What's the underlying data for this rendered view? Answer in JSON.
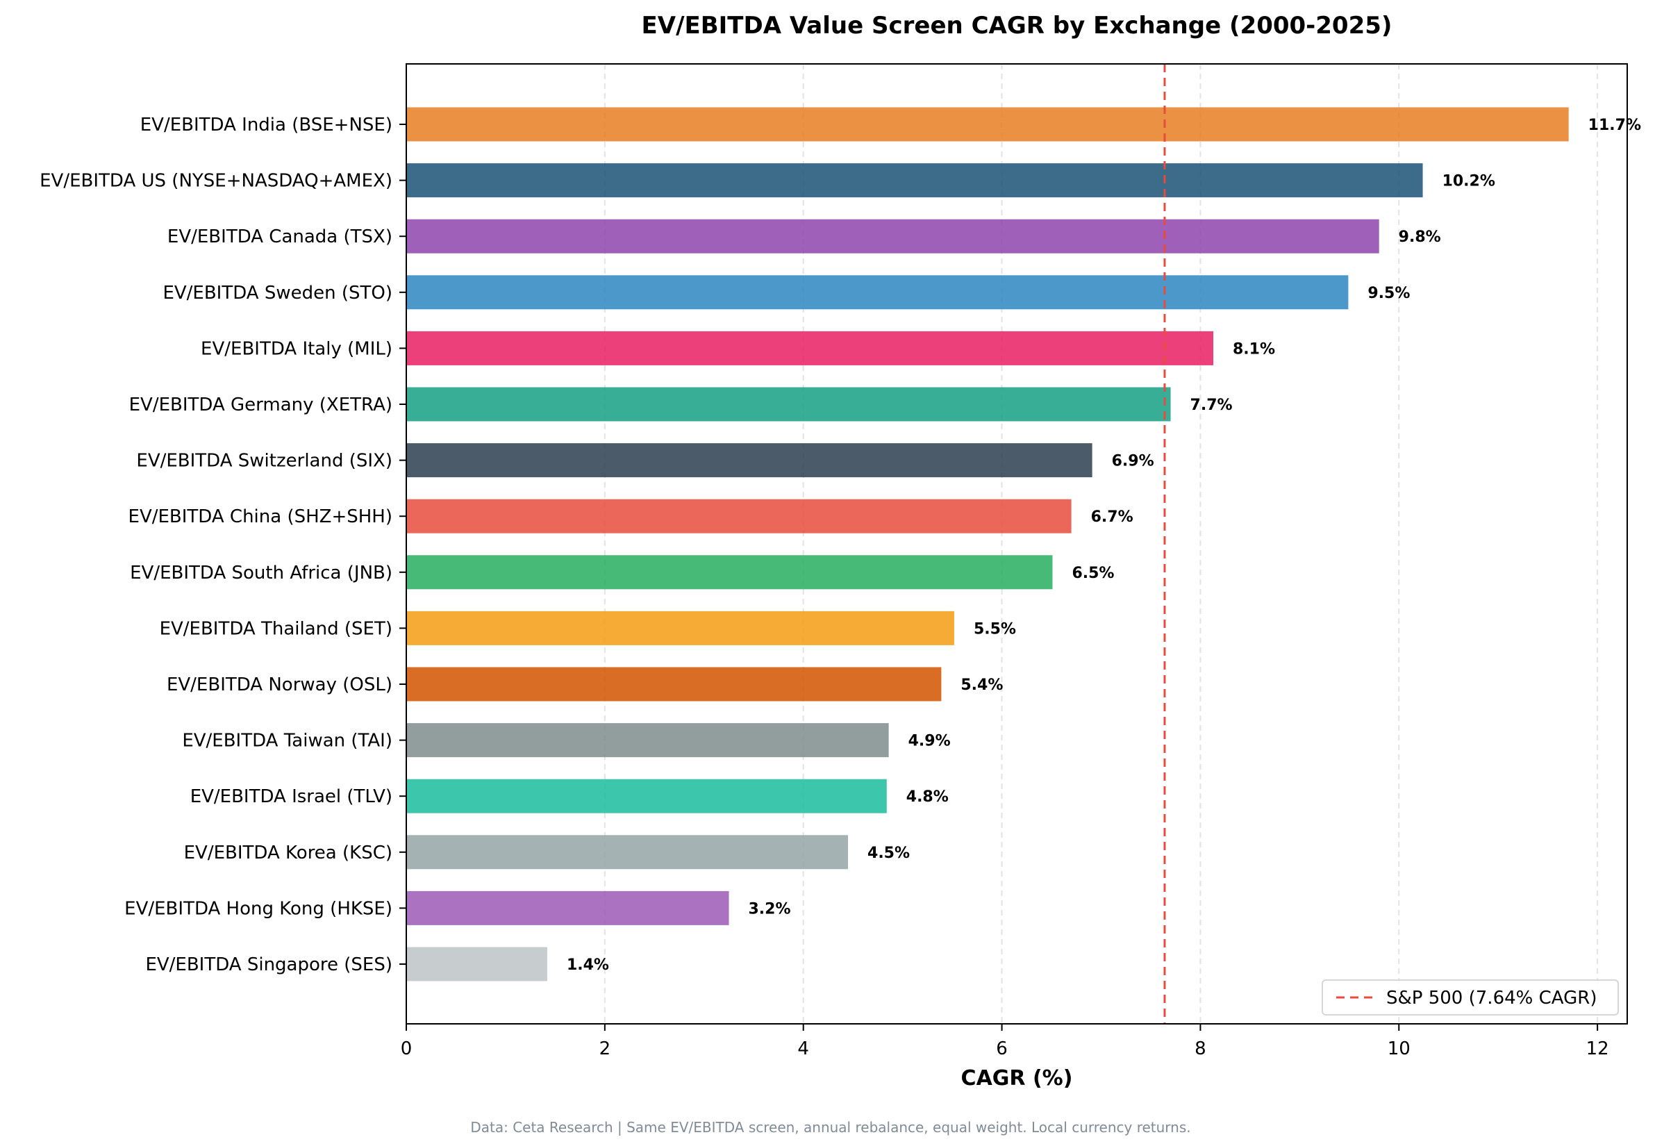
{
  "chart_data": {
    "type": "bar",
    "orientation": "horizontal",
    "title": "EV/EBITDA Value Screen CAGR by Exchange (2000-2025)",
    "xlabel": "CAGR (%)",
    "ylabel": "",
    "xlim": [
      0,
      12.3
    ],
    "xticks": [
      0,
      2,
      4,
      6,
      8,
      10,
      12
    ],
    "grid": "x dashed",
    "categories": [
      "EV/EBITDA India (BSE+NSE)",
      "EV/EBITDA US (NYSE+NASDAQ+AMEX)",
      "EV/EBITDA Canada (TSX)",
      "EV/EBITDA Sweden (STO)",
      "EV/EBITDA Italy (MIL)",
      "EV/EBITDA Germany (XETRA)",
      "EV/EBITDA Switzerland (SIX)",
      "EV/EBITDA China (SHZ+SHH)",
      "EV/EBITDA South Africa (JNB)",
      "EV/EBITDA Thailand (SET)",
      "EV/EBITDA Norway (OSL)",
      "EV/EBITDA Taiwan (TAI)",
      "EV/EBITDA Israel (TLV)",
      "EV/EBITDA Korea (KSC)",
      "EV/EBITDA Hong Kong (HKSE)",
      "EV/EBITDA Singapore (SES)"
    ],
    "values": [
      11.71,
      10.24,
      9.8,
      9.49,
      8.13,
      7.7,
      6.91,
      6.7,
      6.51,
      5.52,
      5.39,
      4.86,
      4.84,
      4.45,
      3.25,
      1.42
    ],
    "data_labels": [
      "11.7%",
      "10.2%",
      "9.8%",
      "9.5%",
      "8.1%",
      "7.7%",
      "6.9%",
      "6.7%",
      "6.5%",
      "5.5%",
      "5.4%",
      "4.9%",
      "4.8%",
      "4.5%",
      "3.2%",
      "1.4%"
    ],
    "colors": [
      "#e67e22",
      "#1a5276",
      "#8e44ad",
      "#2e86c1",
      "#e91e63",
      "#16a085",
      "#2c3e50",
      "#e74c3c",
      "#27ae60",
      "#f39c12",
      "#d35400",
      "#7f8c8d",
      "#1abc9c",
      "#95a5a6",
      "#9b59b6",
      "#bdc3c7"
    ],
    "reference_line": {
      "value": 7.64,
      "label": "S&P 500 (7.64% CAGR)",
      "color": "#e74c3c",
      "style": "dashed"
    },
    "legend_position": "lower-right",
    "footnote": "Data: Ceta Research | Same EV/EBITDA screen, annual rebalance, equal weight. Local currency returns."
  }
}
